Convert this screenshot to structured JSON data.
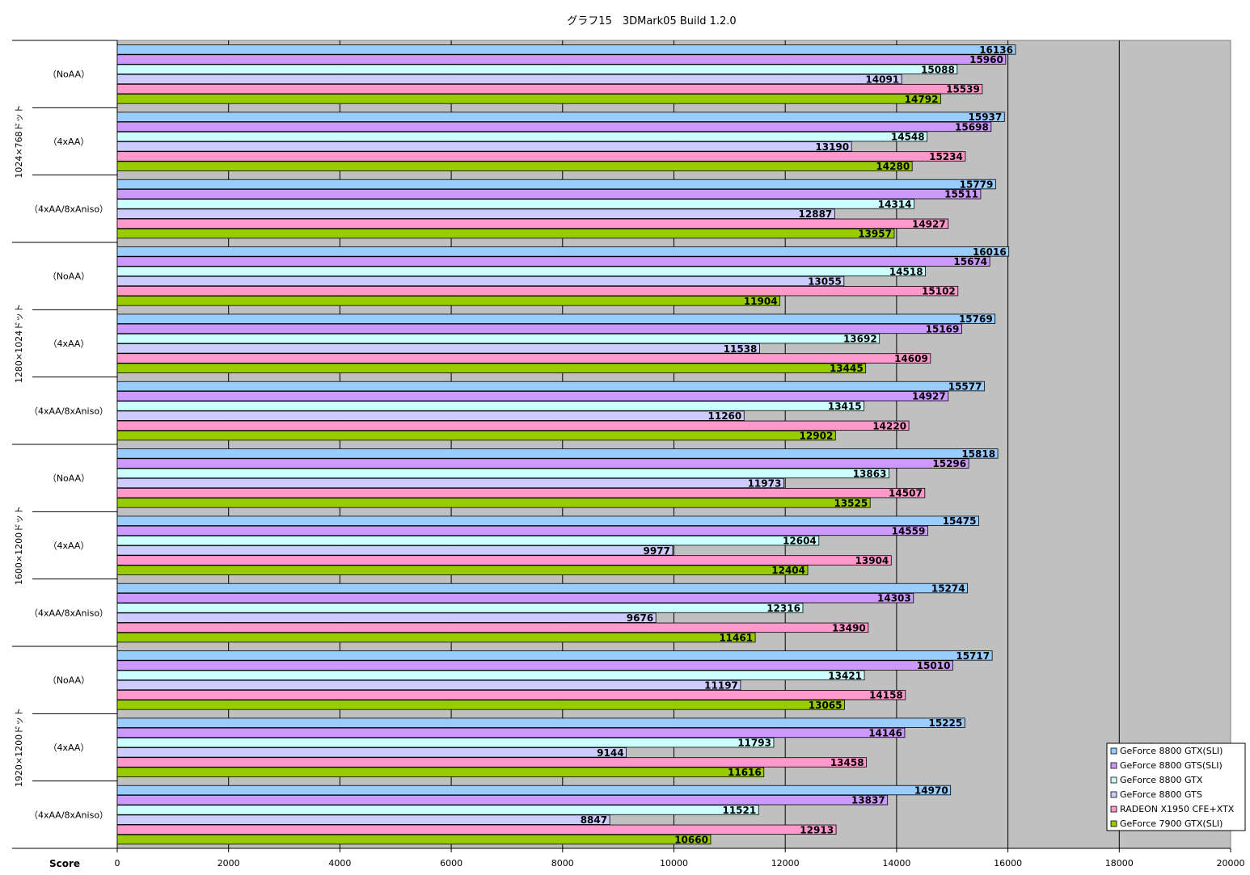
{
  "chart_data": {
    "type": "bar",
    "orientation": "horizontal",
    "title": "グラフ15　3DMark05 Build 1.2.0",
    "xlabel": "Score",
    "xlim": [
      0,
      20000
    ],
    "xticks": [
      0,
      2000,
      4000,
      6000,
      8000,
      10000,
      12000,
      14000,
      16000,
      18000,
      20000
    ],
    "grid": true,
    "legend_position": "bottom-right",
    "groups": [
      {
        "label": "1024×768ドット",
        "categories": [
          "（NoAA）",
          "（4xAA）",
          "（4xAA/8xAniso）"
        ]
      },
      {
        "label": "1280×1024ドット",
        "categories": [
          "（NoAA）",
          "（4xAA）",
          "（4xAA/8xAniso）"
        ]
      },
      {
        "label": "1600×1200ドット",
        "categories": [
          "（NoAA）",
          "（4xAA）",
          "（4xAA/8xAniso）"
        ]
      },
      {
        "label": "1920×1200ドット",
        "categories": [
          "（NoAA）",
          "（4xAA）",
          "（4xAA/8xAniso）"
        ]
      }
    ],
    "series": [
      {
        "name": "GeForce 8800 GTX(SLI)",
        "color": "#99ccff",
        "values": [
          16136,
          15937,
          15779,
          16016,
          15769,
          15577,
          15818,
          15475,
          15274,
          15717,
          15225,
          14970
        ]
      },
      {
        "name": "GeForce 8800 GTS(SLI)",
        "color": "#cc99ff",
        "values": [
          15960,
          15698,
          15511,
          15674,
          15169,
          14927,
          15296,
          14559,
          14303,
          15010,
          14146,
          13837
        ]
      },
      {
        "name": "GeForce 8800 GTX",
        "color": "#ccffff",
        "values": [
          15088,
          14548,
          14314,
          14518,
          13692,
          13415,
          13863,
          12604,
          12316,
          13421,
          11793,
          11521
        ]
      },
      {
        "name": "GeForce 8800 GTS",
        "color": "#ccccff",
        "values": [
          14091,
          13190,
          12887,
          13055,
          11538,
          11260,
          11973,
          9977,
          9676,
          11197,
          9144,
          8847
        ]
      },
      {
        "name": "RADEON X1950 CFE+XTX",
        "color": "#ff99cc",
        "values": [
          15539,
          15234,
          14927,
          15102,
          14609,
          14220,
          14507,
          13904,
          13490,
          14158,
          13458,
          12913
        ]
      },
      {
        "name": "GeForce 7900 GTX(SLI)",
        "color": "#99cc00",
        "values": [
          14792,
          14280,
          13957,
          11904,
          13445,
          12902,
          13525,
          12404,
          11461,
          13065,
          11616,
          10660
        ]
      }
    ],
    "plot_background": "#c0c0c0"
  }
}
